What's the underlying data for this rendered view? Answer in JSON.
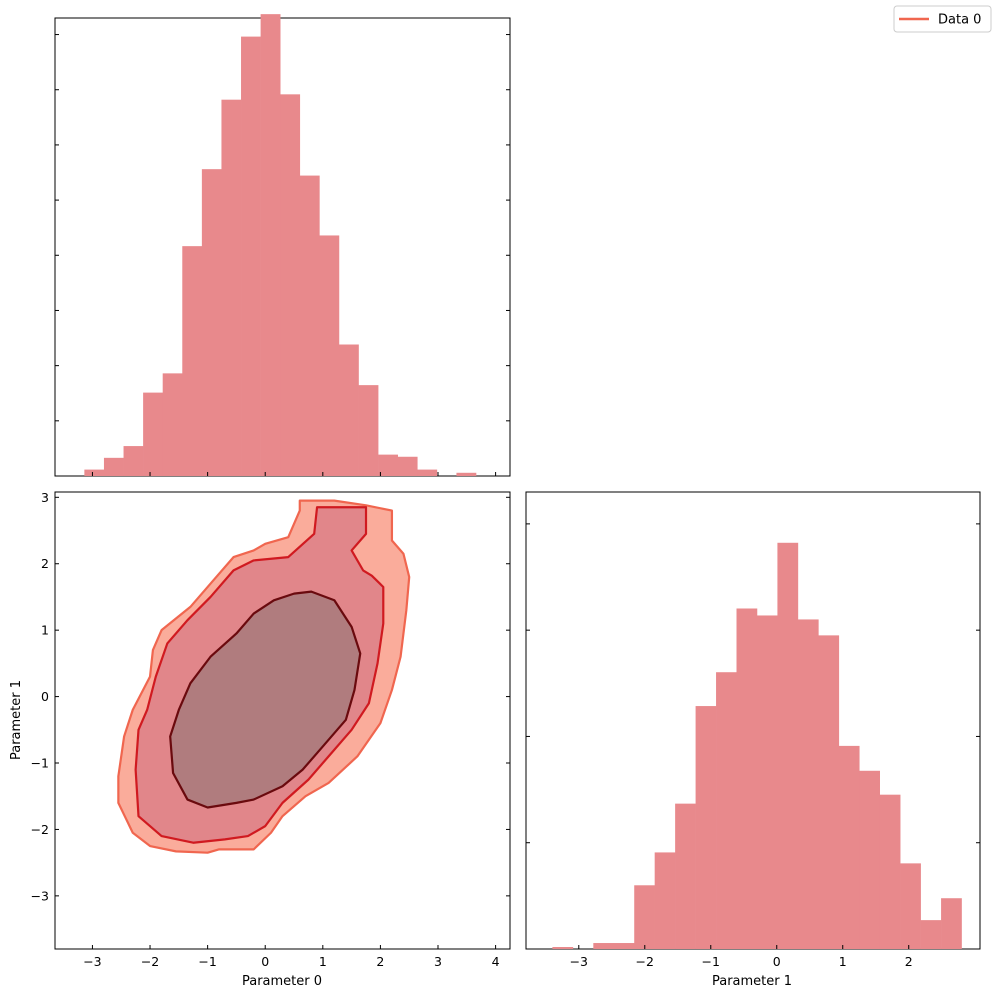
{
  "legend": {
    "entries": [
      {
        "label": "Data 0",
        "color": "#f0664f"
      }
    ]
  },
  "colors": {
    "hist_fill": "#e8898c",
    "contour_fill_outer": "#faac9b",
    "contour_line_outer": "#f0664f",
    "contour_fill_mid": "#e1868a",
    "contour_line_mid": "#d01a20",
    "contour_fill_inner": "#b07c7e",
    "contour_line_inner": "#6a0a0e"
  },
  "chart_data": [
    {
      "type": "histogram",
      "panel": "marginal-parameter-0",
      "xlabel": "",
      "ylabel": "",
      "xlim": [
        -3.65,
        4.25
      ],
      "ylim": [
        0,
        0.4284
      ],
      "bin_edges": [
        -3.14,
        -2.8,
        -2.46,
        -2.12,
        -1.78,
        -1.44,
        -1.1,
        -0.76,
        -0.42,
        -0.08,
        0.26,
        0.6,
        0.94,
        1.28,
        1.62,
        1.96,
        2.3,
        2.64,
        2.98,
        3.32,
        3.66,
        4.0
      ],
      "counts": [
        0.006,
        0.017,
        0.028,
        0.078,
        0.096,
        0.215,
        0.287,
        0.352,
        0.411,
        0.432,
        0.357,
        0.281,
        0.225,
        0.123,
        0.085,
        0.02,
        0.018,
        0.006,
        0.0,
        0.003,
        0.0
      ]
    },
    {
      "type": "contour",
      "panel": "joint",
      "xlabel": "Parameter 0",
      "ylabel": "Parameter 1",
      "xlim": [
        -3.65,
        4.25
      ],
      "ylim": [
        -3.8,
        3.08
      ],
      "x_ticks": [
        -3,
        -2,
        -1,
        0,
        1,
        2,
        3,
        4
      ],
      "x_tick_labels": [
        "−3",
        "−2",
        "−1",
        "0",
        "1",
        "2",
        "3",
        "4"
      ],
      "y_ticks": [
        -3,
        -2,
        -1,
        0,
        1,
        2,
        3
      ],
      "y_tick_labels": [
        "−3",
        "−2",
        "−1",
        "0",
        "1",
        "2",
        "3"
      ],
      "levels": [
        {
          "name": "outer",
          "points": [
            [
              0.6,
              2.8
            ],
            [
              0.6,
              2.95
            ],
            [
              1.2,
              2.95
            ],
            [
              1.75,
              2.88
            ],
            [
              2.2,
              2.8
            ],
            [
              2.2,
              2.35
            ],
            [
              2.4,
              2.15
            ],
            [
              2.5,
              1.8
            ],
            [
              2.45,
              1.3
            ],
            [
              2.35,
              0.6
            ],
            [
              2.2,
              0.1
            ],
            [
              2.0,
              -0.4
            ],
            [
              1.6,
              -0.9
            ],
            [
              1.1,
              -1.3
            ],
            [
              0.7,
              -1.5
            ],
            [
              0.3,
              -1.8
            ],
            [
              0.1,
              -2.05
            ],
            [
              -0.2,
              -2.3
            ],
            [
              -0.8,
              -2.3
            ],
            [
              -1.0,
              -2.35
            ],
            [
              -1.55,
              -2.33
            ],
            [
              -2.0,
              -2.25
            ],
            [
              -2.3,
              -2.05
            ],
            [
              -2.55,
              -1.6
            ],
            [
              -2.55,
              -1.2
            ],
            [
              -2.45,
              -0.6
            ],
            [
              -2.3,
              -0.2
            ],
            [
              -2.0,
              0.3
            ],
            [
              -1.95,
              0.7
            ],
            [
              -1.8,
              1.0
            ],
            [
              -1.3,
              1.35
            ],
            [
              -0.9,
              1.75
            ],
            [
              -0.55,
              2.1
            ],
            [
              -0.2,
              2.2
            ],
            [
              0.0,
              2.3
            ],
            [
              0.4,
              2.4
            ],
            [
              0.6,
              2.8
            ]
          ]
        },
        {
          "name": "mid",
          "points": [
            [
              0.9,
              2.85
            ],
            [
              1.2,
              2.85
            ],
            [
              1.75,
              2.85
            ],
            [
              1.75,
              2.45
            ],
            [
              1.5,
              2.2
            ],
            [
              1.7,
              1.9
            ],
            [
              1.85,
              1.82
            ],
            [
              2.05,
              1.65
            ],
            [
              2.05,
              1.1
            ],
            [
              1.95,
              0.5
            ],
            [
              1.8,
              -0.1
            ],
            [
              1.5,
              -0.5
            ],
            [
              1.1,
              -0.9
            ],
            [
              0.75,
              -1.25
            ],
            [
              0.3,
              -1.6
            ],
            [
              0.0,
              -1.95
            ],
            [
              -0.3,
              -2.1
            ],
            [
              -0.7,
              -2.15
            ],
            [
              -1.25,
              -2.2
            ],
            [
              -1.8,
              -2.1
            ],
            [
              -2.2,
              -1.8
            ],
            [
              -2.25,
              -1.1
            ],
            [
              -2.2,
              -0.5
            ],
            [
              -2.05,
              -0.2
            ],
            [
              -1.9,
              0.3
            ],
            [
              -1.7,
              0.8
            ],
            [
              -1.35,
              1.15
            ],
            [
              -0.95,
              1.5
            ],
            [
              -0.55,
              1.9
            ],
            [
              -0.2,
              2.05
            ],
            [
              0.4,
              2.1
            ],
            [
              0.85,
              2.45
            ],
            [
              0.9,
              2.85
            ]
          ]
        },
        {
          "name": "inner",
          "points": [
            [
              0.8,
              1.58
            ],
            [
              1.2,
              1.45
            ],
            [
              1.5,
              1.05
            ],
            [
              1.65,
              0.65
            ],
            [
              1.55,
              0.1
            ],
            [
              1.4,
              -0.35
            ],
            [
              1.0,
              -0.75
            ],
            [
              0.65,
              -1.1
            ],
            [
              0.3,
              -1.35
            ],
            [
              -0.2,
              -1.55
            ],
            [
              -0.5,
              -1.6
            ],
            [
              -1.0,
              -1.67
            ],
            [
              -1.35,
              -1.55
            ],
            [
              -1.6,
              -1.15
            ],
            [
              -1.65,
              -0.6
            ],
            [
              -1.5,
              -0.2
            ],
            [
              -1.3,
              0.2
            ],
            [
              -0.95,
              0.6
            ],
            [
              -0.5,
              0.95
            ],
            [
              -0.2,
              1.25
            ],
            [
              0.15,
              1.45
            ],
            [
              0.5,
              1.55
            ],
            [
              0.8,
              1.58
            ]
          ]
        }
      ]
    },
    {
      "type": "histogram",
      "panel": "marginal-parameter-1",
      "xlabel": "Parameter 1",
      "ylabel": "",
      "xlim": [
        -3.8,
        3.08
      ],
      "ylim": [
        0,
        0.459
      ],
      "x_ticks": [
        -3,
        -2,
        -1,
        0,
        1,
        2
      ],
      "x_tick_labels": [
        "−3",
        "−2",
        "−1",
        "0",
        "1",
        "2"
      ],
      "bin_edges": [
        -3.4,
        -3.09,
        -2.78,
        -2.47,
        -2.16,
        -1.85,
        -1.54,
        -1.23,
        -0.92,
        -0.61,
        -0.3,
        0.01,
        0.32,
        0.63,
        0.94,
        1.25,
        1.56,
        1.87,
        2.18,
        2.49,
        2.8
      ],
      "counts": [
        0.002,
        0.0,
        0.006,
        0.006,
        0.064,
        0.097,
        0.146,
        0.244,
        0.278,
        0.342,
        0.335,
        0.408,
        0.331,
        0.315,
        0.204,
        0.179,
        0.155,
        0.086,
        0.029,
        0.051
      ]
    }
  ]
}
